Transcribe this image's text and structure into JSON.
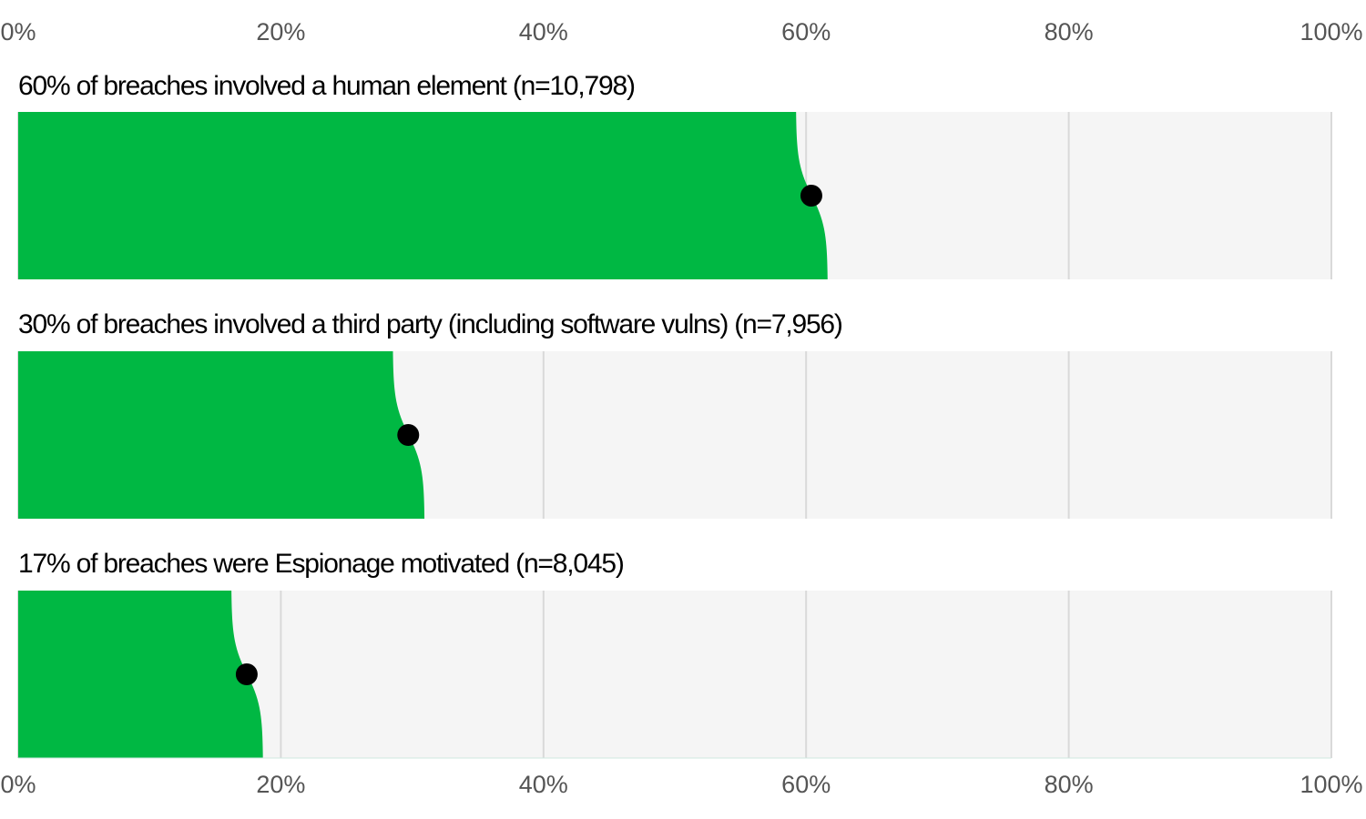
{
  "chart_data": {
    "type": "slab",
    "categories": [
      "60% of breaches involved a human element (n=10,798)",
      "30% of breaches involved a third party (including software vulns) (n=7,956)",
      "17% of breaches were Espionage motivated (n=8,045)"
    ],
    "values": [
      60.4,
      29.7,
      17.4
    ],
    "color": "#00b843",
    "point_color": "#000000",
    "background": "#f5f5f5",
    "xlim": [
      0,
      100
    ],
    "xticks": [
      {
        "value": 0,
        "label": "0%"
      },
      {
        "value": 20,
        "label": "20%"
      },
      {
        "value": 40,
        "label": "40%"
      },
      {
        "value": 60,
        "label": "60%"
      },
      {
        "value": 80,
        "label": "80%"
      },
      {
        "value": 100,
        "label": "100%"
      }
    ],
    "grid": true
  }
}
